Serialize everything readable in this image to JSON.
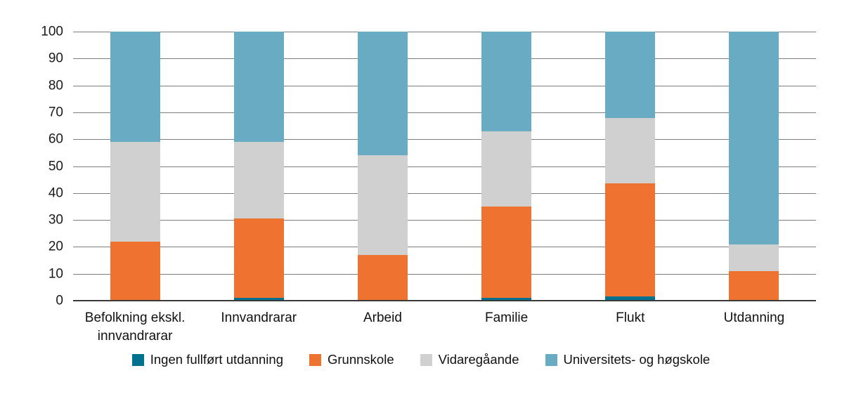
{
  "chart_data": {
    "type": "bar",
    "stacked": true,
    "title": "",
    "xlabel": "",
    "ylabel": "",
    "ylim": [
      0,
      100
    ],
    "ytick_step": 10,
    "ytick_labels": [
      "0",
      "10",
      "20",
      "30",
      "40",
      "50",
      "60",
      "70",
      "80",
      "90",
      "100"
    ],
    "grid": true,
    "legend_position": "bottom",
    "categories": [
      "Befolkning ekskl. innvandrarar",
      "Innvandrarar",
      "Arbeid",
      "Familie",
      "Flukt",
      "Utdanning"
    ],
    "series": [
      {
        "name": "Ingen fullført utdanning",
        "color": "#00718f",
        "values": [
          0,
          1,
          0,
          1,
          1.5,
          0
        ]
      },
      {
        "name": "Grunnskole",
        "color": "#ee7330",
        "values": [
          22,
          29.5,
          17,
          34,
          42,
          11
        ]
      },
      {
        "name": "Vidaregåande",
        "color": "#d0d0d0",
        "values": [
          37,
          28.5,
          37,
          28,
          24.5,
          10
        ]
      },
      {
        "name": "Universitets- og høgskole",
        "color": "#6aabc4",
        "values": [
          41,
          41,
          46,
          37,
          32,
          79
        ]
      }
    ]
  },
  "style": {
    "gridline_color": "#7d7d7d",
    "axis_color": "#3a3a3a",
    "text_color": "#1a1a1a",
    "background": "#ffffff"
  }
}
